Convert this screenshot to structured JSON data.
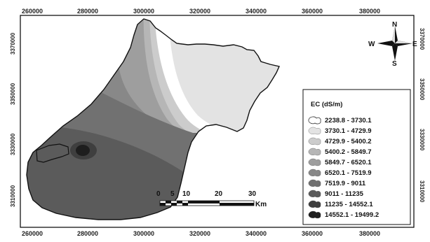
{
  "map": {
    "x_ticks": [
      "260000",
      "280000",
      "300000",
      "320000",
      "340000",
      "360000",
      "380000"
    ],
    "y_ticks": [
      "3370000",
      "3350000",
      "3330000",
      "3310000"
    ],
    "legend": {
      "title": "EC (dS/m)",
      "classes": [
        {
          "label": "2238.8 - 3730.1",
          "color": "#ffffff"
        },
        {
          "label": "3730.1 - 4729.9",
          "color": "#e3e3e3"
        },
        {
          "label": "4729.9 - 5400.2",
          "color": "#cccccc"
        },
        {
          "label": "5400.2 - 5849.7",
          "color": "#b6b6b6"
        },
        {
          "label": "5849.7 - 6520.1",
          "color": "#9e9e9e"
        },
        {
          "label": "6520.1 - 7519.9",
          "color": "#888888"
        },
        {
          "label": "7519.9 - 9011",
          "color": "#717171"
        },
        {
          "label": "9011 - 11235",
          "color": "#5b5b5b"
        },
        {
          "label": "11235 - 14552.1",
          "color": "#3f3f3f"
        },
        {
          "label": "14552.1 - 19499.2",
          "color": "#1e1e1e"
        }
      ]
    },
    "compass": {
      "n": "N",
      "s": "S",
      "e": "E",
      "w": "W"
    },
    "scale_bar": {
      "labels": [
        "0",
        "5",
        "10",
        "20",
        "30"
      ],
      "unit": "Km"
    }
  }
}
